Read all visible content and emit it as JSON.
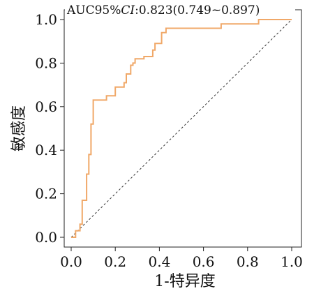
{
  "chart_data": {
    "type": "line",
    "annotation": {
      "prefix": "AUC95%",
      "ci_italic": "CI",
      "value_text": ":0.823(0.749~0.897)"
    },
    "xlabel": "1-特异度",
    "ylabel": "敏感度",
    "xlim": [
      0.0,
      1.0
    ],
    "ylim": [
      0.0,
      1.0
    ],
    "x_ticks": [
      0.0,
      0.2,
      0.4,
      0.6,
      0.8,
      1.0
    ],
    "x_tick_labels": [
      "0.0",
      "0.2",
      "0.4",
      "0.6",
      "0.8",
      "1.0"
    ],
    "y_ticks": [
      0.0,
      0.2,
      0.4,
      0.6,
      0.8,
      1.0
    ],
    "y_tick_labels": [
      "0.0",
      "0.2",
      "0.4",
      "0.6",
      "0.8",
      "1.0"
    ],
    "grid": false,
    "reference_line": "diagonal dashed",
    "series": [
      {
        "color": "#F0A868",
        "x": [
          0.0,
          0.02,
          0.02,
          0.04,
          0.04,
          0.05,
          0.05,
          0.07,
          0.07,
          0.08,
          0.08,
          0.09,
          0.09,
          0.1,
          0.1,
          0.16,
          0.16,
          0.2,
          0.2,
          0.24,
          0.24,
          0.25,
          0.25,
          0.27,
          0.27,
          0.28,
          0.28,
          0.29,
          0.29,
          0.33,
          0.33,
          0.35,
          0.35,
          0.37,
          0.37,
          0.38,
          0.38,
          0.41,
          0.41,
          0.43,
          0.43,
          0.68,
          0.68,
          0.85,
          0.85,
          1.0
        ],
        "y": [
          0.0,
          0.0,
          0.03,
          0.03,
          0.06,
          0.06,
          0.17,
          0.17,
          0.29,
          0.29,
          0.38,
          0.38,
          0.52,
          0.52,
          0.63,
          0.63,
          0.65,
          0.65,
          0.69,
          0.69,
          0.71,
          0.71,
          0.75,
          0.75,
          0.79,
          0.79,
          0.8,
          0.8,
          0.82,
          0.82,
          0.83,
          0.83,
          0.83,
          0.83,
          0.86,
          0.86,
          0.89,
          0.89,
          0.94,
          0.94,
          0.96,
          0.96,
          0.98,
          0.98,
          1.0,
          1.0
        ]
      }
    ]
  }
}
